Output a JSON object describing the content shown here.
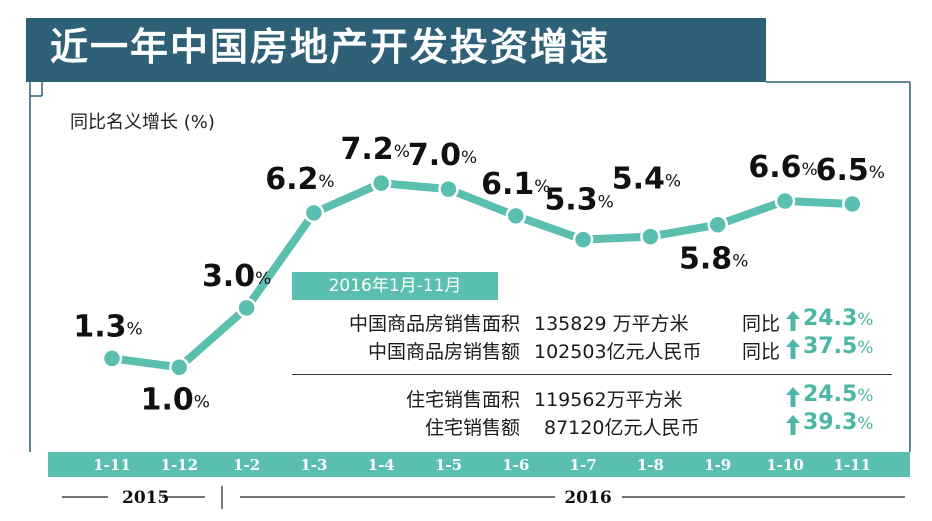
{
  "title": "近一年中国房地产开发投资增速",
  "y_axis_label": "同比名义增长 (%)",
  "chart_data": {
    "type": "line",
    "title": "近一年中国房地产开发投资增速",
    "ylabel": "同比名义增长 (%)",
    "categories": [
      "1-11",
      "1-12",
      "1-2",
      "1-3",
      "1-4",
      "1-5",
      "1-6",
      "1-7",
      "1-8",
      "1-9",
      "1-10",
      "1-11"
    ],
    "series": [
      {
        "values": [
          1.3,
          1.0,
          3.0,
          6.2,
          7.2,
          7.0,
          6.1,
          5.3,
          5.4,
          5.8,
          6.6,
          6.5
        ]
      }
    ],
    "data_labels": [
      "1.3",
      "1.0",
      "3.0",
      "6.2",
      "7.2",
      "7.0",
      "6.1",
      "5.3",
      "5.4",
      "5.8",
      "6.6",
      "6.5"
    ],
    "unit": "%",
    "years": [
      {
        "label": "2015",
        "from": 0,
        "to": 1
      },
      {
        "label": "2016",
        "from": 2,
        "to": 11
      }
    ],
    "colors": {
      "line": "#5bbfaf",
      "marker_fill": "#5bbfaf",
      "marker_stroke": "#ffffff",
      "axis_band": "#5bbfaf",
      "frame": "#2e6178"
    }
  },
  "info_box": {
    "header": "2016年1月-11月",
    "rows": [
      {
        "label": "中国商品房销售面积",
        "value": "135829 万平方米",
        "compare": "同比",
        "pct": "24.3",
        "unit": "%"
      },
      {
        "label": "中国商品房销售额",
        "value": "102503亿元人民币",
        "compare": "同比",
        "pct": "37.5",
        "unit": "%"
      },
      {
        "label": "住宅销售面积",
        "value": "119562万平方米",
        "compare": "",
        "pct": "24.5",
        "unit": "%"
      },
      {
        "label": "住宅销售额",
        "value": "87120亿元人民币",
        "compare": "",
        "pct": "39.3",
        "unit": "%"
      }
    ]
  }
}
